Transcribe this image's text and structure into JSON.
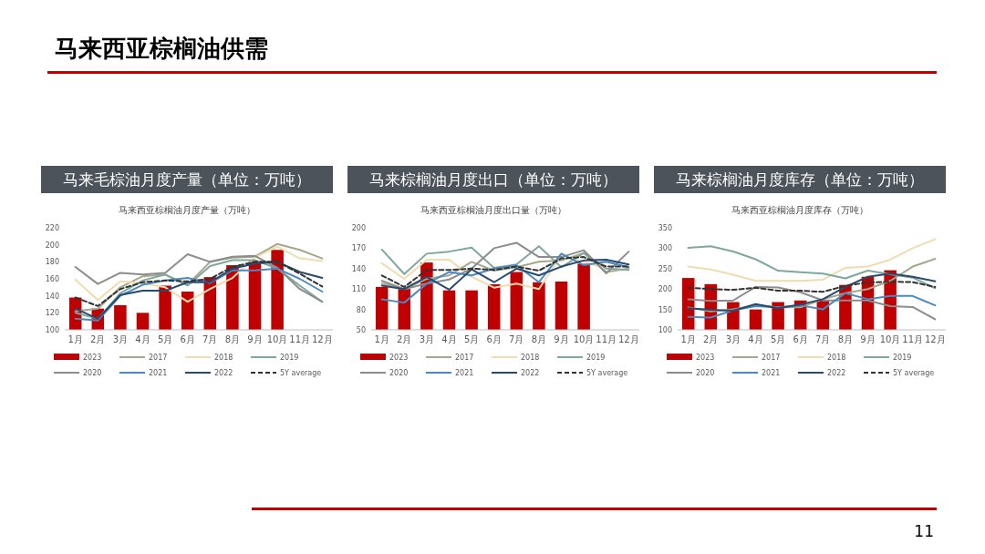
{
  "chart_data": [
    {
      "type": "bar",
      "title": "马来毛棕油月度产量（单位：万吨）",
      "subtitle": "马来西亚棕榈油月度产量（万吨）",
      "annotations": [
        "马来西亚棕榈油供需",
        "11"
      ],
      "categories": [
        "1月",
        "2月",
        "3月",
        "4月",
        "5月",
        "6月",
        "7月",
        "8月",
        "9月",
        "10月",
        "11月",
        "12月"
      ],
      "ylim": [
        100,
        220
      ],
      "yticks": [
        100,
        120,
        140,
        160,
        180,
        200,
        220
      ],
      "legend": "bottom",
      "series": [
        {
          "name": "2023",
          "color": "#c00000",
          "values": [
            138,
            125,
            129,
            120,
            152,
            145,
            162,
            176,
            181,
            194,
            null,
            null
          ]
        },
        {
          "name": "2017",
          "type": "line",
          "color": "#a5a88a",
          "values": [
            122,
            125,
            150,
            163,
            165,
            153,
            180,
            185,
            186,
            201,
            194,
            184
          ]
        },
        {
          "name": "2018",
          "type": "line",
          "color": "#f0dcae",
          "values": [
            159,
            135,
            157,
            155,
            150,
            133,
            148,
            161,
            185,
            198,
            184,
            181
          ]
        },
        {
          "name": "2019",
          "type": "line",
          "color": "#7fa89c",
          "values": [
            120,
            113,
            143,
            158,
            165,
            152,
            175,
            182,
            182,
            172,
            152,
            133
          ]
        },
        {
          "name": "2020",
          "type": "line",
          "color": "#8c8c8c",
          "values": [
            174,
            154,
            167,
            165,
            167,
            189,
            180,
            186,
            187,
            173,
            148,
            133
          ]
        },
        {
          "name": "2021",
          "type": "line",
          "color": "#4a8ac0",
          "values": [
            113,
            111,
            140,
            153,
            158,
            161,
            155,
            170,
            170,
            172,
            160,
            145
          ]
        },
        {
          "name": "2022",
          "type": "line",
          "color": "#264a70",
          "values": [
            125,
            113,
            141,
            146,
            146,
            156,
            156,
            172,
            178,
            180,
            168,
            161
          ]
        },
        {
          "name": "5Y average",
          "type": "line",
          "color": "#333333",
          "line_style": "dashed",
          "values": [
            138,
            128,
            148,
            156,
            158,
            157,
            160,
            174,
            180,
            180,
            166,
            151
          ]
        }
      ]
    },
    {
      "type": "bar",
      "title": "马来棕榈油月度出口（单位：万吨）",
      "subtitle": "马来西亚棕榈油月度出口量（万吨）",
      "categories": [
        "1月",
        "2月",
        "3月",
        "4月",
        "5月",
        "6月",
        "7月",
        "8月",
        "9月",
        "10月",
        "11月",
        "12月"
      ],
      "ylim": [
        50,
        200
      ],
      "yticks": [
        50,
        80,
        110,
        140,
        170,
        200
      ],
      "legend": "bottom",
      "series": [
        {
          "name": "2023",
          "color": "#c00000",
          "values": [
            113,
            110,
            149,
            108,
            108,
            117,
            135,
            120,
            121,
            147,
            null,
            null
          ]
        },
        {
          "name": "2017",
          "type": "line",
          "color": "#a5a88a",
          "values": [
            118,
            110,
            125,
            130,
            150,
            137,
            142,
            150,
            152,
            163,
            135,
            140
          ]
        },
        {
          "name": "2018",
          "type": "line",
          "color": "#f0dcae",
          "values": [
            148,
            125,
            153,
            153,
            128,
            112,
            118,
            110,
            160,
            150,
            140,
            138
          ]
        },
        {
          "name": "2019",
          "type": "line",
          "color": "#7fa89c",
          "values": [
            168,
            132,
            162,
            165,
            171,
            141,
            146,
            173,
            142,
            163,
            140,
            138
          ]
        },
        {
          "name": "2020",
          "type": "line",
          "color": "#8c8c8c",
          "values": [
            122,
            110,
            118,
            124,
            140,
            170,
            178,
            157,
            157,
            167,
            133,
            165
          ]
        },
        {
          "name": "2021",
          "type": "line",
          "color": "#4a8ac0",
          "values": [
            95,
            90,
            118,
            135,
            130,
            140,
            145,
            120,
            162,
            145,
            150,
            142
          ]
        },
        {
          "name": "2022",
          "type": "line",
          "color": "#264a70",
          "values": [
            115,
            110,
            128,
            109,
            139,
            120,
            140,
            130,
            143,
            152,
            153,
            146
          ]
        },
        {
          "name": "5Y average",
          "type": "line",
          "color": "#333333",
          "line_style": "dashed",
          "values": [
            130,
            113,
            138,
            138,
            140,
            138,
            143,
            137,
            155,
            157,
            143,
            143
          ]
        }
      ]
    },
    {
      "type": "bar",
      "title": "马来棕榈油月度库存（单位：万吨）",
      "subtitle": "马来西亚棕榈油月度库存（万吨）",
      "categories": [
        "1月",
        "2月",
        "3月",
        "4月",
        "5月",
        "6月",
        "7月",
        "8月",
        "9月",
        "10月",
        "11月",
        "12月"
      ],
      "ylim": [
        100,
        350
      ],
      "yticks": [
        100,
        150,
        200,
        250,
        300,
        350
      ],
      "legend": "bottom",
      "series": [
        {
          "name": "2023",
          "color": "#c00000",
          "values": [
            227,
            212,
            168,
            150,
            168,
            172,
            172,
            210,
            230,
            246,
            null,
            null
          ]
        },
        {
          "name": "2017",
          "type": "line",
          "color": "#a5a88a",
          "values": [
            155,
            145,
            150,
            160,
            155,
            155,
            175,
            190,
            200,
            220,
            255,
            274
          ]
        },
        {
          "name": "2018",
          "type": "line",
          "color": "#f0dcae",
          "values": [
            255,
            248,
            235,
            220,
            220,
            220,
            223,
            252,
            255,
            272,
            300,
            322
          ]
        },
        {
          "name": "2019",
          "type": "line",
          "color": "#7fa89c",
          "values": [
            301,
            305,
            292,
            273,
            245,
            241,
            238,
            226,
            245,
            236,
            228,
            202
          ]
        },
        {
          "name": "2020",
          "type": "line",
          "color": "#8c8c8c",
          "values": [
            175,
            171,
            172,
            205,
            204,
            192,
            172,
            172,
            172,
            158,
            156,
            126
          ]
        },
        {
          "name": "2021",
          "type": "line",
          "color": "#4a8ac0",
          "values": [
            132,
            130,
            148,
            158,
            155,
            160,
            150,
            190,
            175,
            183,
            183,
            160
          ]
        },
        {
          "name": "2022",
          "type": "line",
          "color": "#264a70",
          "values": [
            153,
            149,
            147,
            163,
            153,
            162,
            175,
            205,
            230,
            238,
            230,
            219
          ]
        },
        {
          "name": "5Y average",
          "type": "line",
          "color": "#333333",
          "line_style": "dashed",
          "values": [
            203,
            200,
            198,
            203,
            196,
            196,
            193,
            208,
            216,
            218,
            217,
            205
          ]
        }
      ]
    }
  ]
}
